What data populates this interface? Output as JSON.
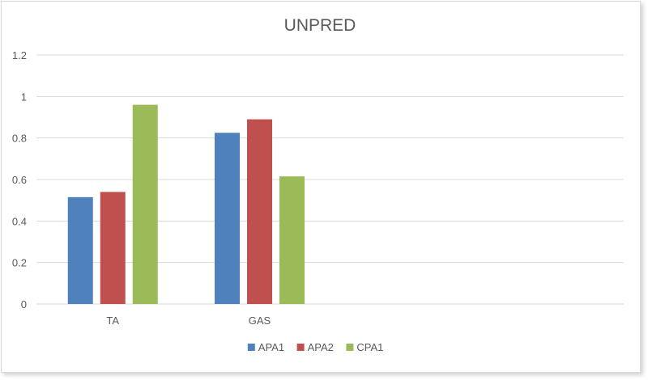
{
  "chart_data": {
    "type": "bar",
    "title": "UNPRED",
    "categories": [
      "TA",
      "GAS"
    ],
    "series": [
      {
        "name": "APA1",
        "values": [
          0.515,
          0.825
        ],
        "color": "#4f81bd"
      },
      {
        "name": "APA2",
        "values": [
          0.54,
          0.89
        ],
        "color": "#c0504d"
      },
      {
        "name": "CPA1",
        "values": [
          0.96,
          0.615
        ],
        "color": "#9bbb59"
      }
    ],
    "ylim": [
      0,
      1.2
    ],
    "yticks": [
      "0",
      "0.2",
      "0.4",
      "0.6",
      "0.8",
      "1",
      "1.2"
    ],
    "grid": true,
    "legend_position": "bottom"
  }
}
